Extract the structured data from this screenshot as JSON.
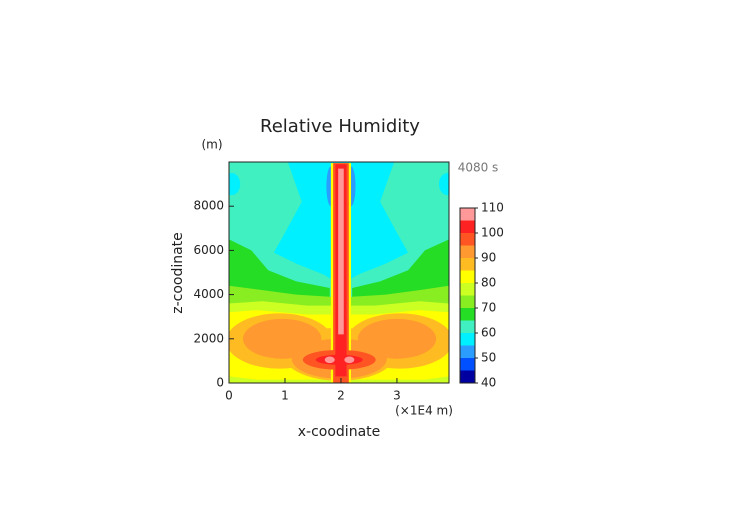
{
  "chart_data": {
    "type": "contour",
    "title": "Relative Humidity",
    "y_unit": "(m)",
    "time_label": "4080 s",
    "y_label": "z-coodinate",
    "x_label": "x-coodinate",
    "x_unit": "(×1E4 m)",
    "xlim": [
      0,
      3.93
    ],
    "xticks": [
      0,
      1,
      2,
      3
    ],
    "ylim": [
      0,
      10000
    ],
    "yticks": [
      0,
      2000,
      4000,
      6000,
      8000
    ],
    "levels": [
      40,
      45,
      50,
      55,
      60,
      65,
      70,
      75,
      80,
      85,
      90,
      95,
      100,
      105,
      110
    ],
    "colors": [
      "#0000a0",
      "#0050ff",
      "#2a9dff",
      "#00f0ff",
      "#40f0c0",
      "#25dd25",
      "#88ee22",
      "#ccff22",
      "#ffff00",
      "#ffbb22",
      "#ff9930",
      "#ff5522",
      "#ff2222",
      "#ff9999"
    ],
    "colorbar_ticks": [
      40,
      50,
      60,
      70,
      80,
      90,
      100,
      110
    ]
  }
}
